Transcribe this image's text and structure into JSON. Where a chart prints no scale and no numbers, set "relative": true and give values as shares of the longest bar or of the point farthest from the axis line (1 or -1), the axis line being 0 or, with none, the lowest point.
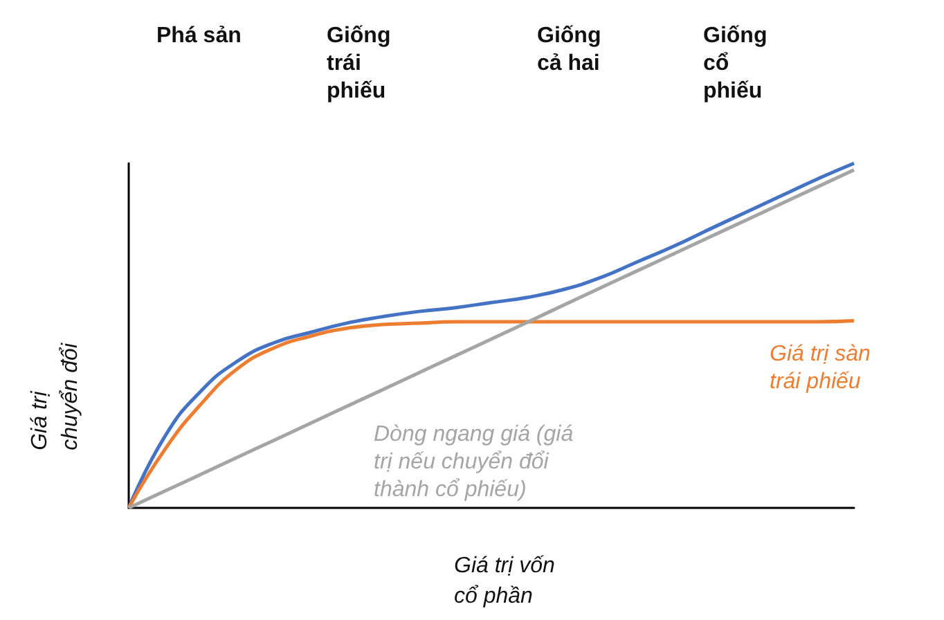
{
  "chart_data": {
    "type": "line",
    "relative": true,
    "xlabel": "Giá trị vốn\ncổ phần",
    "ylabel": "Giá trị\nchuyển đổi",
    "categories": [
      null,
      null,
      null,
      null,
      null,
      null,
      null,
      null,
      null,
      null,
      null,
      null,
      null,
      null,
      null,
      null,
      null,
      null,
      null,
      null,
      null
    ],
    "series": [
      {
        "color": "#4472c4",
        "values": [
          0,
          0.208,
          0.34,
          0.426,
          0.479,
          0.509,
          0.536,
          0.555,
          0.57,
          0.581,
          0.596,
          0.611,
          0.634,
          0.668,
          0.713,
          0.758,
          0.808,
          0.857,
          0.906,
          0.955,
          1
        ]
      },
      {
        "name": "Giá trị sàn\ntrái phiếu",
        "color": "#ed7d31",
        "values": [
          0,
          0.17,
          0.302,
          0.404,
          0.464,
          0.498,
          0.521,
          0.532,
          0.536,
          0.54,
          0.54,
          0.54,
          0.54,
          0.54,
          0.54,
          0.54,
          0.54,
          0.54,
          0.54,
          0.54,
          0.543
        ]
      },
      {
        "name": "Dòng ngang giá (giá\ntrị nếu chuyển đổi\nthành cổ phiếu)",
        "color": "#a5a5a5",
        "values": [
          0,
          0.049,
          0.098,
          0.147,
          0.196,
          0.245,
          0.294,
          0.343,
          0.392,
          0.441,
          0.49,
          0.539,
          0.589,
          0.638,
          0.687,
          0.736,
          0.785,
          0.834,
          0.883,
          0.932,
          0.981
        ]
      }
    ],
    "annotations": [
      "Phá sản",
      "Giống\ntrái\nphiếu",
      "Giống\ncả hai",
      "Giống\ncổ\nphiếu"
    ],
    "legend": false,
    "grid": false,
    "marker": "none",
    "line_style": "solid"
  }
}
